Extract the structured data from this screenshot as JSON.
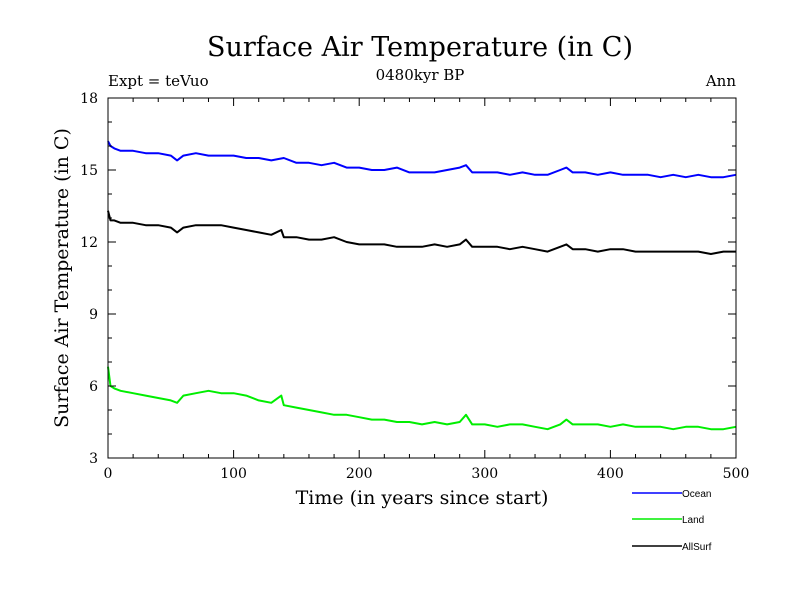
{
  "chart_data": {
    "type": "line",
    "title": "Surface Air Temperature (in C)",
    "subtitle": "0480kyr BP",
    "left_note": "Expt = teVuo",
    "right_note": "Ann",
    "xlabel": "Time (in years since start)",
    "ylabel": "Surface Air Temperature (in C)",
    "xlim": [
      0,
      500
    ],
    "ylim": [
      3,
      18
    ],
    "xticks": [
      "0",
      "100",
      "200",
      "300",
      "400",
      "500"
    ],
    "yticks": [
      "3",
      "6",
      "9",
      "12",
      "15",
      "18"
    ],
    "grid": false,
    "legend_position": "bottom-right",
    "series": [
      {
        "name": "Ocean",
        "color": "#0000ff",
        "x": [
          0,
          2,
          5,
          10,
          20,
          30,
          40,
          50,
          55,
          60,
          70,
          80,
          90,
          100,
          110,
          120,
          130,
          140,
          150,
          160,
          170,
          180,
          190,
          200,
          210,
          220,
          230,
          240,
          250,
          260,
          270,
          280,
          285,
          290,
          300,
          310,
          320,
          330,
          340,
          350,
          360,
          365,
          370,
          380,
          390,
          400,
          410,
          420,
          430,
          440,
          450,
          460,
          470,
          480,
          490,
          500
        ],
        "values": [
          16.2,
          16.0,
          15.9,
          15.8,
          15.8,
          15.7,
          15.7,
          15.6,
          15.4,
          15.6,
          15.7,
          15.6,
          15.6,
          15.6,
          15.5,
          15.5,
          15.4,
          15.5,
          15.3,
          15.3,
          15.2,
          15.3,
          15.1,
          15.1,
          15.0,
          15.0,
          15.1,
          14.9,
          14.9,
          14.9,
          15.0,
          15.1,
          15.2,
          14.9,
          14.9,
          14.9,
          14.8,
          14.9,
          14.8,
          14.8,
          15.0,
          15.1,
          14.9,
          14.9,
          14.8,
          14.9,
          14.8,
          14.8,
          14.8,
          14.7,
          14.8,
          14.7,
          14.8,
          14.7,
          14.7,
          14.8
        ]
      },
      {
        "name": "Land",
        "color": "#00ee00",
        "x": [
          0,
          2,
          5,
          10,
          20,
          30,
          40,
          50,
          55,
          60,
          70,
          80,
          90,
          100,
          110,
          120,
          130,
          138,
          140,
          150,
          160,
          170,
          180,
          190,
          200,
          210,
          220,
          230,
          240,
          250,
          260,
          270,
          280,
          285,
          290,
          300,
          310,
          320,
          330,
          340,
          350,
          360,
          365,
          370,
          380,
          390,
          400,
          410,
          420,
          430,
          440,
          450,
          460,
          470,
          480,
          490,
          500
        ],
        "values": [
          6.8,
          6.0,
          5.9,
          5.8,
          5.7,
          5.6,
          5.5,
          5.4,
          5.3,
          5.6,
          5.7,
          5.8,
          5.7,
          5.7,
          5.6,
          5.4,
          5.3,
          5.6,
          5.2,
          5.1,
          5.0,
          4.9,
          4.8,
          4.8,
          4.7,
          4.6,
          4.6,
          4.5,
          4.5,
          4.4,
          4.5,
          4.4,
          4.5,
          4.8,
          4.4,
          4.4,
          4.3,
          4.4,
          4.4,
          4.3,
          4.2,
          4.4,
          4.6,
          4.4,
          4.4,
          4.4,
          4.3,
          4.4,
          4.3,
          4.3,
          4.3,
          4.2,
          4.3,
          4.3,
          4.2,
          4.2,
          4.3
        ]
      },
      {
        "name": "AllSurf",
        "color": "#000000",
        "x": [
          0,
          2,
          5,
          10,
          20,
          30,
          40,
          50,
          55,
          60,
          70,
          80,
          90,
          100,
          110,
          120,
          130,
          138,
          140,
          150,
          160,
          170,
          180,
          190,
          200,
          210,
          220,
          230,
          240,
          250,
          260,
          270,
          280,
          285,
          290,
          300,
          310,
          320,
          330,
          340,
          350,
          360,
          365,
          370,
          380,
          390,
          400,
          410,
          420,
          430,
          440,
          450,
          460,
          470,
          480,
          490,
          500
        ],
        "values": [
          13.3,
          12.9,
          12.9,
          12.8,
          12.8,
          12.7,
          12.7,
          12.6,
          12.4,
          12.6,
          12.7,
          12.7,
          12.7,
          12.6,
          12.5,
          12.4,
          12.3,
          12.5,
          12.2,
          12.2,
          12.1,
          12.1,
          12.2,
          12.0,
          11.9,
          11.9,
          11.9,
          11.8,
          11.8,
          11.8,
          11.9,
          11.8,
          11.9,
          12.1,
          11.8,
          11.8,
          11.8,
          11.7,
          11.8,
          11.7,
          11.6,
          11.8,
          11.9,
          11.7,
          11.7,
          11.6,
          11.7,
          11.7,
          11.6,
          11.6,
          11.6,
          11.6,
          11.6,
          11.6,
          11.5,
          11.6,
          11.6
        ]
      }
    ]
  }
}
